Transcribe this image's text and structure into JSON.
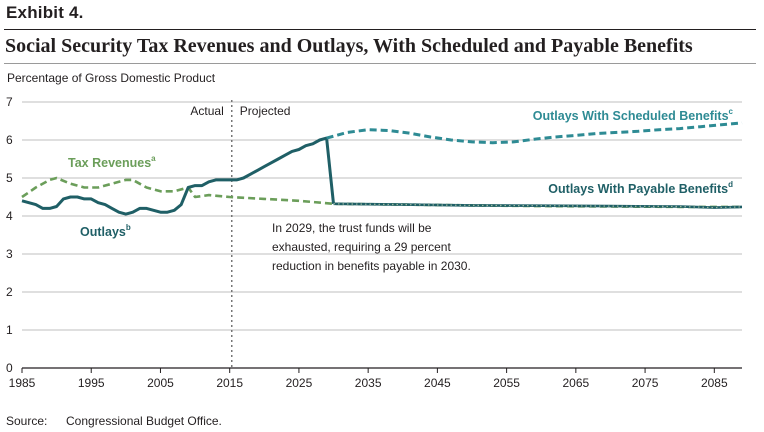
{
  "exhibit": "Exhibit 4.",
  "chart_data": {
    "type": "line",
    "title": "Social Security Tax Revenues and Outlays, With Scheduled and Payable Benefits",
    "ylabel": "Percentage of Gross Domestic Product",
    "xlabel": "",
    "xlim": [
      1985,
      2089
    ],
    "ylim": [
      0,
      7
    ],
    "x_ticks": [
      1985,
      1995,
      2005,
      2015,
      2025,
      2035,
      2045,
      2055,
      2065,
      2075,
      2085
    ],
    "y_ticks": [
      0,
      1,
      2,
      3,
      4,
      5,
      6,
      7
    ],
    "divider": {
      "x": 2015.3,
      "left_label": "Actual",
      "right_label": "Projected"
    },
    "annotation": [
      "In 2029, the trust funds will be",
      "exhausted, requiring a 29 percent",
      "reduction in benefits payable in 2030."
    ],
    "colors": {
      "outlays": "#1f5f66",
      "scheduled": "#2e8b94",
      "tax": "#6b9e5a",
      "payable_dots": "#9bb8a0"
    },
    "series": [
      {
        "key": "tax",
        "name": "Tax Revenues",
        "sup": "a",
        "style": "dashed",
        "x": [
          1985,
          1987,
          1989,
          1990,
          1992,
          1994,
          1996,
          1998,
          2000,
          2001,
          2003,
          2005,
          2007,
          2009,
          2010,
          2012,
          2015,
          2020,
          2025,
          2030,
          2040,
          2050,
          2060,
          2070,
          2080,
          2089
        ],
        "y": [
          4.5,
          4.75,
          4.95,
          5.0,
          4.85,
          4.75,
          4.75,
          4.85,
          4.95,
          4.95,
          4.75,
          4.65,
          4.65,
          4.75,
          4.5,
          4.55,
          4.5,
          4.45,
          4.4,
          4.32,
          4.3,
          4.28,
          4.26,
          4.25,
          4.24,
          4.24
        ]
      },
      {
        "key": "outlays",
        "name": "Outlays",
        "sup": "b",
        "style": "solid",
        "x": [
          1985,
          1986,
          1987,
          1988,
          1989,
          1990,
          1991,
          1992,
          1993,
          1994,
          1995,
          1996,
          1997,
          1998,
          1999,
          2000,
          2001,
          2002,
          2003,
          2004,
          2005,
          2006,
          2007,
          2008,
          2009,
          2010,
          2011,
          2012,
          2013,
          2014,
          2015,
          2016,
          2017,
          2018,
          2019,
          2020,
          2021,
          2022,
          2023,
          2024,
          2025,
          2026,
          2027,
          2028,
          2029,
          2030
        ],
        "y": [
          4.4,
          4.35,
          4.3,
          4.2,
          4.2,
          4.25,
          4.45,
          4.5,
          4.5,
          4.45,
          4.45,
          4.35,
          4.3,
          4.2,
          4.1,
          4.05,
          4.1,
          4.2,
          4.2,
          4.15,
          4.1,
          4.1,
          4.15,
          4.3,
          4.75,
          4.8,
          4.8,
          4.9,
          4.95,
          4.95,
          4.95,
          4.95,
          5.0,
          5.1,
          5.2,
          5.3,
          5.4,
          5.5,
          5.6,
          5.7,
          5.75,
          5.85,
          5.9,
          6.0,
          6.05,
          4.32
        ]
      },
      {
        "key": "scheduled",
        "name": "Outlays With Scheduled Benefits",
        "sup": "c",
        "style": "dashed",
        "x": [
          2029,
          2032,
          2035,
          2038,
          2041,
          2044,
          2047,
          2050,
          2053,
          2056,
          2059,
          2062,
          2065,
          2068,
          2071,
          2074,
          2077,
          2080,
          2083,
          2086,
          2089
        ],
        "y": [
          6.05,
          6.2,
          6.27,
          6.25,
          6.18,
          6.08,
          6.0,
          5.95,
          5.93,
          5.95,
          6.02,
          6.08,
          6.12,
          6.17,
          6.2,
          6.23,
          6.27,
          6.3,
          6.35,
          6.4,
          6.45
        ]
      },
      {
        "key": "payable",
        "name": "Outlays With Payable Benefits",
        "sup": "d",
        "style": "solid",
        "x": [
          2030,
          2040,
          2050,
          2060,
          2070,
          2080,
          2085,
          2089
        ],
        "y": [
          4.32,
          4.3,
          4.28,
          4.27,
          4.26,
          4.25,
          4.22,
          4.24
        ]
      }
    ]
  },
  "source": {
    "label": "Source:",
    "text": "Congressional Budget Office."
  }
}
